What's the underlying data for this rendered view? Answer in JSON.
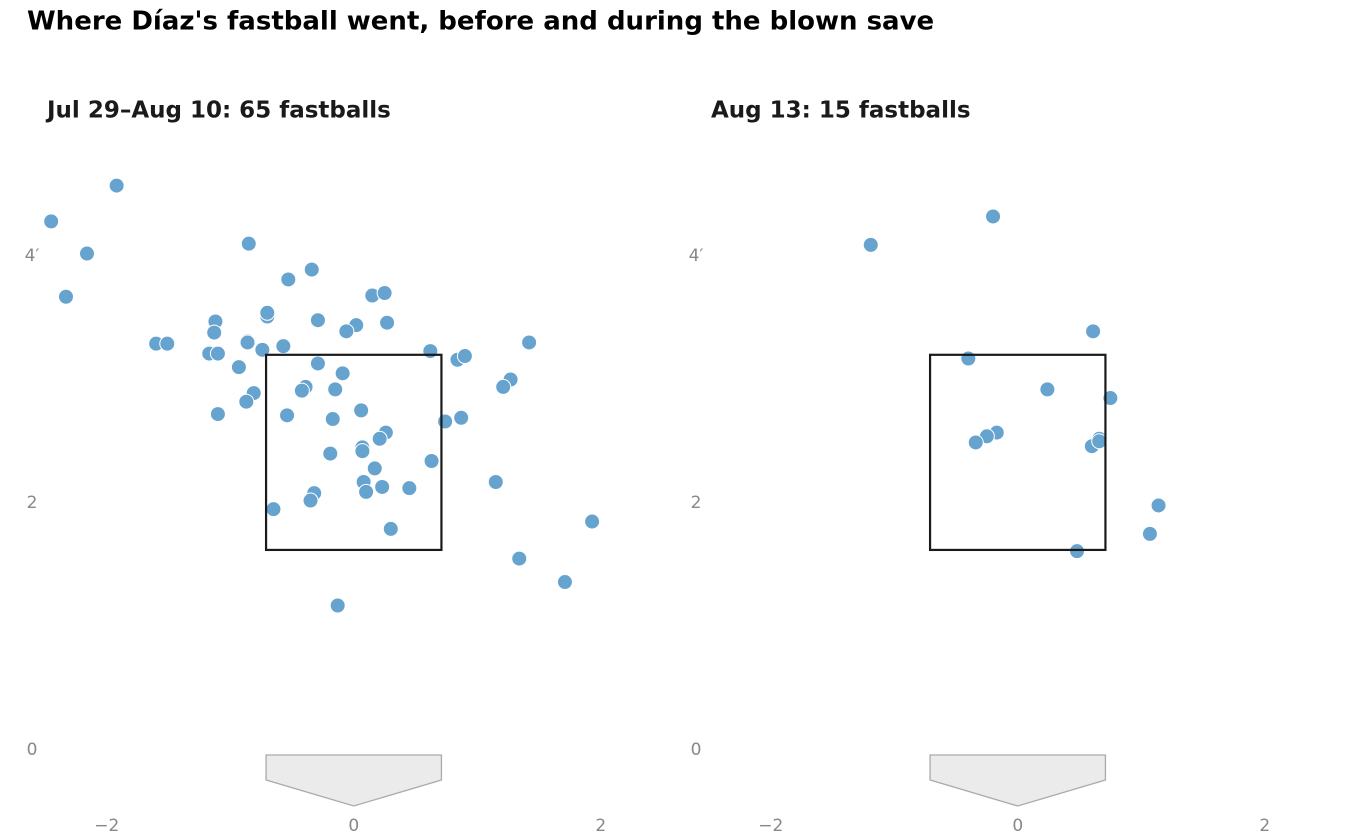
{
  "title": "Where Díaz's fastball went, before and during the blown save",
  "chart_data": [
    {
      "type": "scatter",
      "title": "Jul 29–Aug 10: 65 fastballs",
      "color": "#67a3cf",
      "xlim": [
        -2.5,
        2.5
      ],
      "ylim": [
        -0.5,
        4.8
      ],
      "xticks": [
        {
          "value": -2,
          "label": "−2"
        },
        0,
        2
      ],
      "yticks": [
        0,
        2,
        {
          "value": 4,
          "label": "4′"
        }
      ],
      "zone": {
        "xlim": [
          -0.71,
          0.71
        ],
        "ylim": [
          1.62,
          3.2
        ]
      },
      "x": [
        -2.45,
        -1.92,
        -2.16,
        -2.33,
        -0.85,
        -0.34,
        -0.53,
        -1.12,
        -1.13,
        -1.6,
        -1.51,
        -0.86,
        -0.86,
        -0.7,
        -0.7,
        -0.29,
        0.15,
        0.25,
        0.27,
        0.02,
        -0.06,
        -1.17,
        -1.1,
        -0.74,
        -0.57,
        -0.93,
        -0.29,
        -0.09,
        0.62,
        0.84,
        0.9,
        1.42,
        1.27,
        1.21,
        -0.39,
        -0.42,
        -0.15,
        -0.81,
        -0.87,
        -1.1,
        -0.54,
        0.06,
        -0.17,
        0.74,
        0.87,
        0.26,
        0.21,
        0.07,
        0.07,
        -0.19,
        0.63,
        0.17,
        1.15,
        0.08,
        0.23,
        0.45,
        0.1,
        -0.32,
        -0.35,
        -0.65,
        0.3,
        1.93,
        1.34,
        1.71,
        -0.13
      ],
      "y": [
        4.28,
        4.57,
        4.02,
        3.67,
        4.1,
        3.89,
        3.81,
        3.47,
        3.38,
        3.29,
        3.29,
        3.31,
        3.3,
        3.51,
        3.54,
        3.48,
        3.68,
        3.7,
        3.46,
        3.44,
        3.39,
        3.21,
        3.21,
        3.24,
        3.27,
        3.1,
        3.13,
        3.05,
        3.23,
        3.16,
        3.19,
        3.3,
        3.0,
        2.94,
        2.94,
        2.91,
        2.92,
        2.89,
        2.82,
        2.72,
        2.71,
        2.75,
        2.68,
        2.66,
        2.69,
        2.57,
        2.52,
        2.45,
        2.42,
        2.4,
        2.34,
        2.28,
        2.17,
        2.17,
        2.13,
        2.12,
        2.09,
        2.08,
        2.02,
        1.95,
        1.79,
        1.85,
        1.55,
        1.36,
        1.17
      ]
    },
    {
      "type": "scatter",
      "title": "Aug 13: 15 fastballs",
      "color": "#67a3cf",
      "xlim": [
        -2.5,
        2.5
      ],
      "ylim": [
        -0.5,
        4.8
      ],
      "xticks": [
        {
          "value": -2,
          "label": "−2"
        },
        0,
        2
      ],
      "yticks": [
        0,
        2,
        {
          "value": 4,
          "label": "4′"
        }
      ],
      "zone": {
        "xlim": [
          -0.71,
          0.71
        ],
        "ylim": [
          1.62,
          3.2
        ]
      },
      "x": [
        -1.19,
        -0.2,
        0.61,
        -0.4,
        0.24,
        0.75,
        -0.17,
        -0.25,
        -0.34,
        0.66,
        0.6,
        1.14,
        1.07,
        0.48,
        0.66
      ],
      "y": [
        4.09,
        4.32,
        3.39,
        3.17,
        2.92,
        2.85,
        2.57,
        2.54,
        2.49,
        2.52,
        2.46,
        1.98,
        1.75,
        1.61,
        2.5
      ]
    }
  ]
}
